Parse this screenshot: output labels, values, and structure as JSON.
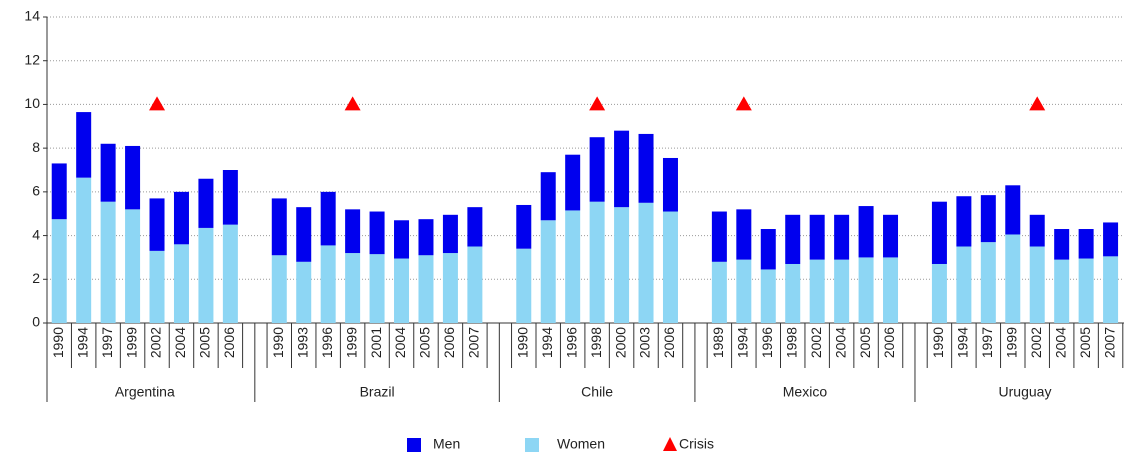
{
  "chart_data": {
    "type": "bar",
    "stacked": true,
    "groups": [
      {
        "name": "Argentina",
        "categories": [
          "1990",
          "1994",
          "1997",
          "1999",
          "2002",
          "2004",
          "2005",
          "2006"
        ]
      },
      {
        "name": "Brazil",
        "categories": [
          "1990",
          "1993",
          "1996",
          "1999",
          "2001",
          "2004",
          "2005",
          "2006",
          "2007"
        ]
      },
      {
        "name": "Chile",
        "categories": [
          "1990",
          "1994",
          "1996",
          "1998",
          "2000",
          "2003",
          "2006"
        ]
      },
      {
        "name": "Mexico",
        "categories": [
          "1989",
          "1994",
          "1996",
          "1998",
          "2002",
          "2004",
          "2005",
          "2006"
        ]
      },
      {
        "name": "Uruguay",
        "categories": [
          "1990",
          "1994",
          "1997",
          "1999",
          "2002",
          "2004",
          "2005",
          "2007"
        ]
      }
    ],
    "series": [
      {
        "name": "Women",
        "color": "#8dd6f4",
        "values": [
          [
            4.75,
            6.65,
            5.55,
            5.2,
            3.3,
            3.6,
            4.35,
            4.5
          ],
          [
            3.1,
            2.8,
            3.55,
            3.2,
            3.15,
            2.95,
            3.1,
            3.2,
            3.5
          ],
          [
            3.4,
            4.7,
            5.15,
            5.55,
            5.3,
            5.5,
            5.1
          ],
          [
            2.8,
            2.9,
            2.45,
            2.7,
            2.9,
            2.9,
            3.0,
            3.0
          ],
          [
            2.7,
            3.5,
            3.7,
            4.05,
            3.5,
            2.9,
            2.95,
            3.05
          ]
        ]
      },
      {
        "name": "Men",
        "color": "#0000ee",
        "values": [
          [
            2.55,
            3.0,
            2.65,
            2.9,
            2.4,
            2.4,
            2.25,
            2.5
          ],
          [
            2.6,
            2.5,
            2.45,
            2.0,
            1.95,
            1.75,
            1.65,
            1.75,
            1.8
          ],
          [
            2.0,
            2.2,
            2.55,
            2.95,
            3.5,
            3.15,
            2.45
          ],
          [
            2.3,
            2.3,
            1.85,
            2.25,
            2.05,
            2.05,
            2.35,
            1.95
          ],
          [
            2.85,
            2.3,
            2.15,
            2.25,
            1.45,
            1.4,
            1.35,
            1.55
          ]
        ]
      }
    ],
    "crisis": {
      "name": "Crisis",
      "color": "#ff0000",
      "values": [
        [
          null,
          null,
          null,
          null,
          10,
          null,
          null,
          null
        ],
        [
          null,
          null,
          null,
          10,
          null,
          null,
          null,
          null,
          null
        ],
        [
          null,
          null,
          null,
          10,
          null,
          null,
          null
        ],
        [
          null,
          10,
          null,
          null,
          null,
          null,
          null,
          null
        ],
        [
          null,
          null,
          null,
          null,
          10,
          null,
          null,
          null
        ]
      ]
    },
    "legend_order": [
      "Men",
      "Women",
      "Crisis"
    ],
    "ylim": [
      0,
      14
    ],
    "yticks": [
      0,
      2,
      4,
      6,
      8,
      10,
      12,
      14
    ],
    "grid": true
  }
}
